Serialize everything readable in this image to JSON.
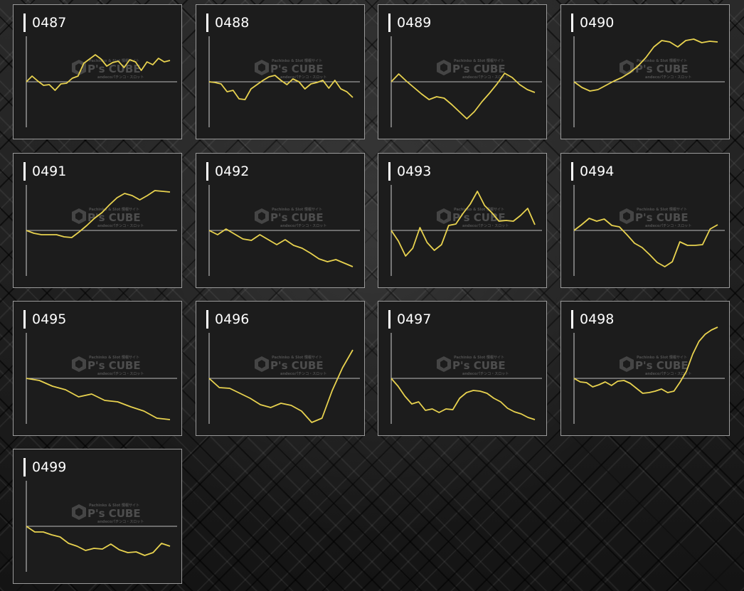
{
  "watermark": {
    "brand": "P's CUBE",
    "tagline": "Pachinko & Slot 情報サイト",
    "sub": "andecoパチンコ・スロット"
  },
  "colors": {
    "line": "#e8d24f",
    "baseline": "#bdbdbd",
    "axis": "#d0d0d0",
    "card_bg": "#1c1c1c"
  },
  "cards": [
    {
      "id": "0487",
      "values": [
        0,
        8,
        1,
        -5,
        -4,
        -12,
        -3,
        -2,
        5,
        8,
        26,
        32,
        38,
        32,
        22,
        27,
        29,
        20,
        31,
        28,
        16,
        28,
        24,
        33,
        28,
        30
      ]
    },
    {
      "id": "0488",
      "values": [
        0,
        -1,
        -3,
        -14,
        -12,
        -24,
        -25,
        -10,
        -4,
        2,
        7,
        9,
        2,
        -4,
        4,
        0,
        -10,
        -3,
        -1,
        2,
        -9,
        2,
        -10,
        -14,
        -22
      ]
    },
    {
      "id": "0489",
      "values": [
        0,
        11,
        1,
        -8,
        -17,
        -25,
        -21,
        -23,
        -32,
        -42,
        -52,
        -42,
        -28,
        -16,
        -3,
        12,
        6,
        -4,
        -11,
        -15
      ]
    },
    {
      "id": "0490",
      "values": [
        0,
        -8,
        -13,
        -11,
        -5,
        1,
        6,
        13,
        22,
        34,
        49,
        58,
        56,
        49,
        58,
        60,
        55,
        57,
        56
      ]
    },
    {
      "id": "0491",
      "values": [
        0,
        -4,
        -6,
        -6,
        -6,
        -9,
        -10,
        -2,
        7,
        17,
        25,
        36,
        46,
        52,
        49,
        43,
        49,
        56,
        55,
        54
      ]
    },
    {
      "id": "0492",
      "values": [
        0,
        -6,
        2,
        -5,
        -12,
        -14,
        -6,
        -13,
        -20,
        -13,
        -21,
        -25,
        -32,
        -40,
        -44,
        -41,
        -46,
        -51
      ]
    },
    {
      "id": "0493",
      "values": [
        0,
        -15,
        -36,
        -25,
        4,
        -17,
        -28,
        -20,
        7,
        9,
        24,
        37,
        55,
        35,
        25,
        13,
        14,
        13,
        21,
        31,
        8
      ]
    },
    {
      "id": "0494",
      "values": [
        0,
        8,
        17,
        13,
        16,
        7,
        5,
        -6,
        -18,
        -24,
        -34,
        -45,
        -51,
        -44,
        -16,
        -21,
        -21,
        -20,
        2,
        8
      ]
    },
    {
      "id": "0495",
      "values": [
        0,
        -3,
        -11,
        -16,
        -26,
        -22,
        -31,
        -33,
        -40,
        -46,
        -56,
        -58
      ]
    },
    {
      "id": "0496",
      "values": [
        0,
        -13,
        -14,
        -21,
        -28,
        -37,
        -41,
        -35,
        -38,
        -46,
        -62,
        -56,
        -17,
        15,
        40
      ]
    },
    {
      "id": "0497",
      "values": [
        0,
        -11,
        -25,
        -36,
        -33,
        -45,
        -43,
        -48,
        -43,
        -44,
        -28,
        -20,
        -17,
        -18,
        -21,
        -28,
        -33,
        -42,
        -47,
        -50,
        -55,
        -58
      ]
    },
    {
      "id": "0498",
      "values": [
        0,
        -5,
        -6,
        -12,
        -9,
        -5,
        -10,
        -4,
        -3,
        -7,
        -14,
        -21,
        -20,
        -18,
        -15,
        -20,
        -18,
        -5,
        10,
        34,
        52,
        62,
        68,
        72
      ]
    },
    {
      "id": "0499",
      "values": [
        0,
        -8,
        -8,
        -12,
        -15,
        -24,
        -28,
        -34,
        -31,
        -32,
        -25,
        -33,
        -37,
        -36,
        -41,
        -37,
        -24,
        -28
      ]
    }
  ]
}
